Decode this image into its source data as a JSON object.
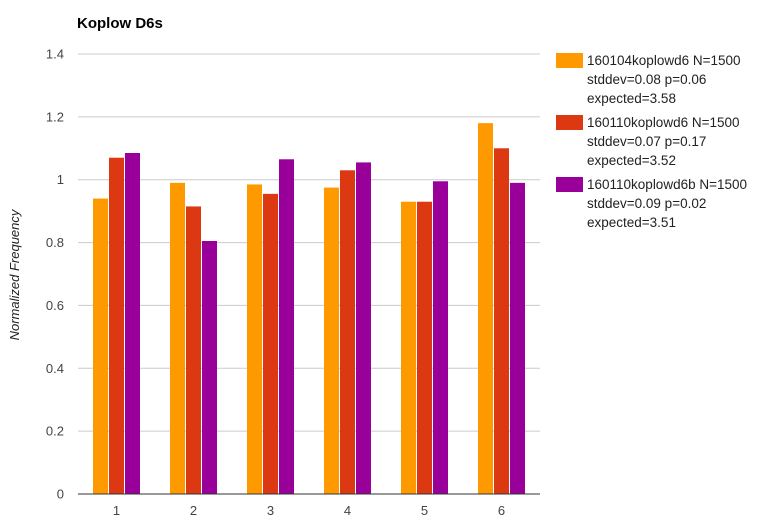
{
  "chart_data": {
    "type": "bar",
    "title": "Koplow D6s",
    "xlabel": "",
    "ylabel": "Normalized Frequency",
    "categories": [
      "1",
      "2",
      "3",
      "4",
      "5",
      "6"
    ],
    "ylim": [
      0,
      1.4
    ],
    "yticks": [
      "0",
      "0.2",
      "0.4",
      "0.6",
      "0.8",
      "1",
      "1.2",
      "1.4"
    ],
    "grid": true,
    "legend_position": "right",
    "series": [
      {
        "name": "160104koplowd6 N=1500",
        "legend_lines": [
          "stddev=0.08 p=0.06",
          "expected=3.58"
        ],
        "color": "#ff9900",
        "values": [
          0.94,
          0.99,
          0.985,
          0.975,
          0.93,
          1.18
        ]
      },
      {
        "name": "160110koplowd6 N=1500",
        "legend_lines": [
          "stddev=0.07 p=0.17",
          "expected=3.52"
        ],
        "color": "#dc3912",
        "values": [
          1.07,
          0.915,
          0.955,
          1.03,
          0.93,
          1.1
        ]
      },
      {
        "name": "160110koplowd6b N=1500",
        "legend_lines": [
          "stddev=0.09 p=0.02",
          "expected=3.51"
        ],
        "color": "#990099",
        "values": [
          1.085,
          0.805,
          1.065,
          1.055,
          0.995,
          0.99
        ]
      }
    ]
  }
}
